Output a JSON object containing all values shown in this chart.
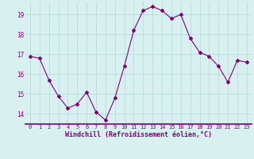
{
  "x": [
    0,
    1,
    2,
    3,
    4,
    5,
    6,
    7,
    8,
    9,
    10,
    11,
    12,
    13,
    14,
    15,
    16,
    17,
    18,
    19,
    20,
    21,
    22,
    23
  ],
  "y": [
    16.9,
    16.8,
    15.7,
    14.9,
    14.3,
    14.5,
    15.1,
    14.1,
    13.7,
    14.8,
    16.4,
    18.2,
    19.2,
    19.4,
    19.2,
    18.8,
    19.0,
    17.8,
    17.1,
    16.9,
    16.4,
    15.6,
    16.7,
    16.6
  ],
  "line_color": "#800080",
  "marker": "D",
  "marker_size": 2,
  "background_color": "#d8f0f0",
  "grid_color": "#b0d8d8",
  "xlabel": "Windchill (Refroidissement éolien,°C)",
  "xlabel_color": "#800080",
  "tick_color": "#800080",
  "ylim": [
    13.5,
    19.65
  ],
  "xlim": [
    -0.5,
    23.5
  ],
  "yticks": [
    14,
    15,
    16,
    17,
    18,
    19
  ],
  "xticks": [
    0,
    1,
    2,
    3,
    4,
    5,
    6,
    7,
    8,
    9,
    10,
    11,
    12,
    13,
    14,
    15,
    16,
    17,
    18,
    19,
    20,
    21,
    22,
    23
  ],
  "tick_fontsize": 5.0,
  "xlabel_fontsize": 6.0
}
